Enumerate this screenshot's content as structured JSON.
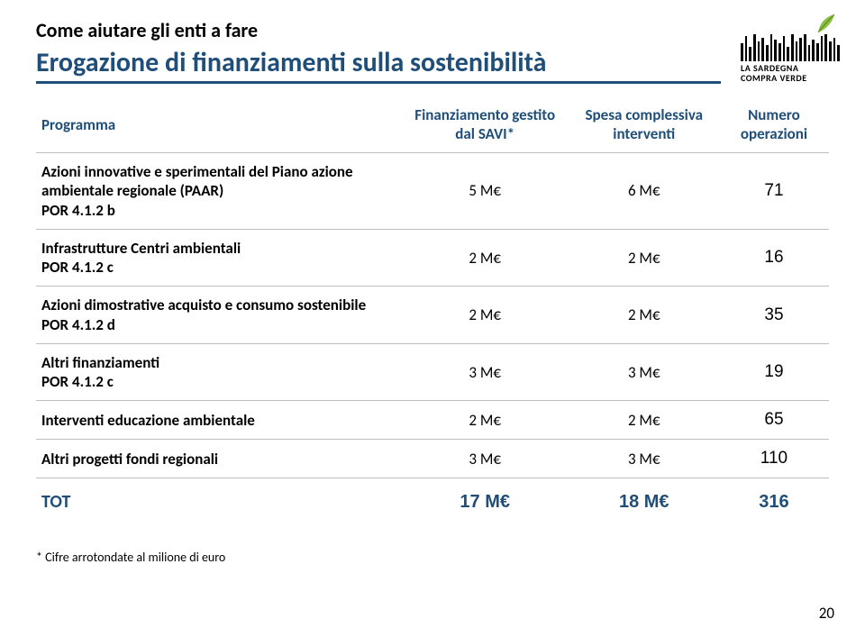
{
  "pretitle": "Come aiutare gli enti a fare",
  "title": "Erogazione di finanziamenti sulla sostenibilità",
  "logo": {
    "line1": "LA SARDEGNA",
    "line2": "COMPRA VERDE"
  },
  "columns": {
    "programma": "Programma",
    "finanziamento": "Finanziamento gestito dal SAVI*",
    "spesa": "Spesa complessiva interventi",
    "numero": "Numero operazioni"
  },
  "rows": [
    {
      "label": "Azioni innovative e sperimentali del Piano azione ambientale regionale (PAAR)<br>POR 4.1.2 b",
      "fin": "5 M€",
      "spesa": "6 M€",
      "num": "71"
    },
    {
      "label": "Infrastrutture Centri ambientali<br>POR 4.1.2 c",
      "fin": "2 M€",
      "spesa": "2 M€",
      "num": "16"
    },
    {
      "label": "Azioni dimostrative acquisto e consumo sostenibile<br>POR 4.1.2 d",
      "fin": "2 M€",
      "spesa": "2 M€",
      "num": "35"
    },
    {
      "label": "Altri finanziamenti<br>POR 4.1.2 c",
      "fin": "3 M€",
      "spesa": "3 M€",
      "num": "19"
    },
    {
      "label": "Interventi educazione ambientale",
      "fin": "2 M€",
      "spesa": "2 M€",
      "num": "65"
    },
    {
      "label": "Altri progetti fondi regionali",
      "fin": "3 M€",
      "spesa": "3 M€",
      "num": "110"
    }
  ],
  "total": {
    "label": "TOT",
    "fin": "17 M€",
    "spesa": "18 M€",
    "num": "316"
  },
  "footnote": "* Cifre arrotondate al milione di euro",
  "page": "20",
  "colors": {
    "heading": "#1f4e79",
    "rule": "#bfbfbf",
    "leaf": "#8bbf3f"
  },
  "barcode_heights": [
    20,
    28,
    16,
    30,
    22,
    26,
    18,
    30,
    24,
    20,
    28,
    16,
    30,
    22,
    26,
    30,
    18,
    24,
    20,
    28,
    30,
    22,
    26,
    18
  ]
}
